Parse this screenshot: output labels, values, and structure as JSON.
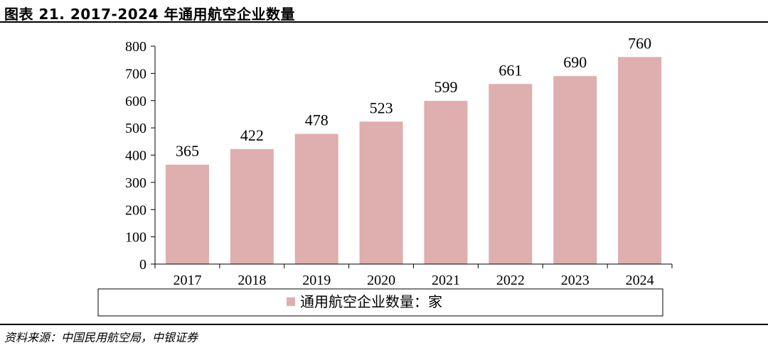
{
  "title": "图表 21.   2017-2024 年通用航空企业数量",
  "source": "资料来源：中国民用航空局，中银证券",
  "colors": {
    "bar": "#DFAEAE",
    "axis": "#000000"
  },
  "chart_data": {
    "type": "bar",
    "categories": [
      "2017",
      "2018",
      "2019",
      "2020",
      "2021",
      "2022",
      "2023",
      "2024"
    ],
    "series": [
      {
        "name": "通用航空企业数量：家",
        "values": [
          365,
          422,
          478,
          523,
          599,
          661,
          690,
          760
        ]
      }
    ],
    "title": "",
    "xlabel": "",
    "ylabel": "",
    "ylim": [
      0,
      800
    ],
    "yticks": [
      0,
      100,
      200,
      300,
      400,
      500,
      600,
      700,
      800
    ],
    "grid": false,
    "legend_position": "bottom",
    "data_labels": true
  }
}
